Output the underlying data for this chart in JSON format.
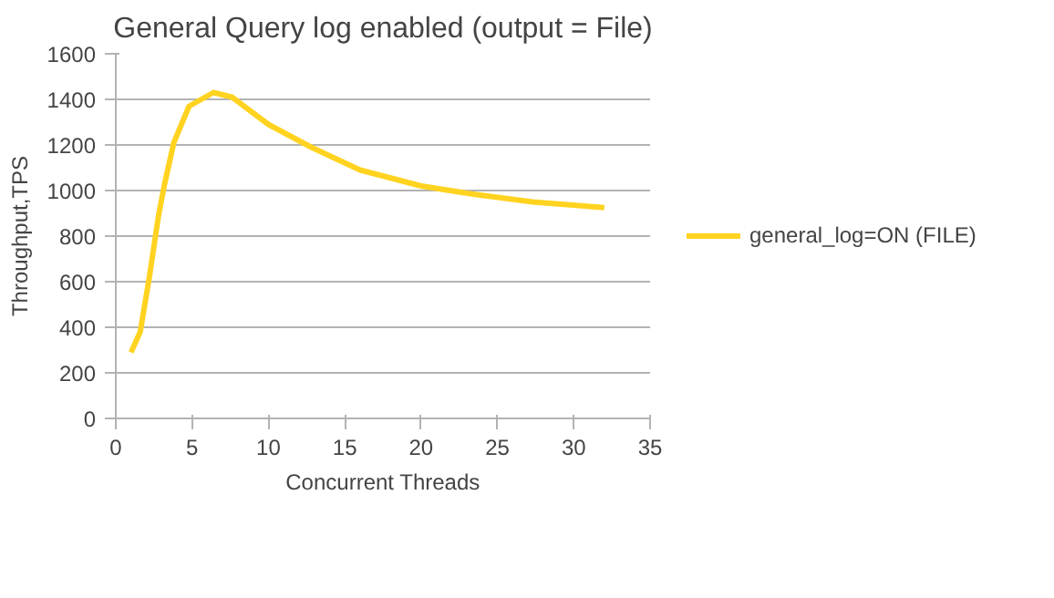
{
  "chart_data": {
    "type": "line",
    "title": "General Query log enabled (output = File)",
    "xlabel": "Concurrent Threads",
    "ylabel": "Throughput,TPS",
    "series": [
      {
        "name": "general_log=ON (FILE)",
        "color": "#ffd320",
        "x": [
          1,
          1.6,
          2.2,
          2.8,
          3.2,
          3.8,
          4.8,
          6.4,
          7.6,
          10,
          12.8,
          16,
          20,
          23.3,
          27.3,
          32
        ],
        "values": [
          290,
          380,
          620,
          890,
          1030,
          1210,
          1370,
          1430,
          1410,
          1290,
          1190,
          1090,
          1020,
          985,
          950,
          925
        ]
      }
    ],
    "xlim": [
      0,
      35
    ],
    "xticks": [
      0,
      5,
      10,
      15,
      20,
      25,
      30,
      35
    ],
    "ylim": [
      0,
      1600
    ],
    "yticks": [
      0,
      200,
      400,
      600,
      800,
      1000,
      1200,
      1400,
      1600
    ],
    "grid": "y",
    "legend": "right",
    "marker": "none",
    "line_style": "solid"
  }
}
